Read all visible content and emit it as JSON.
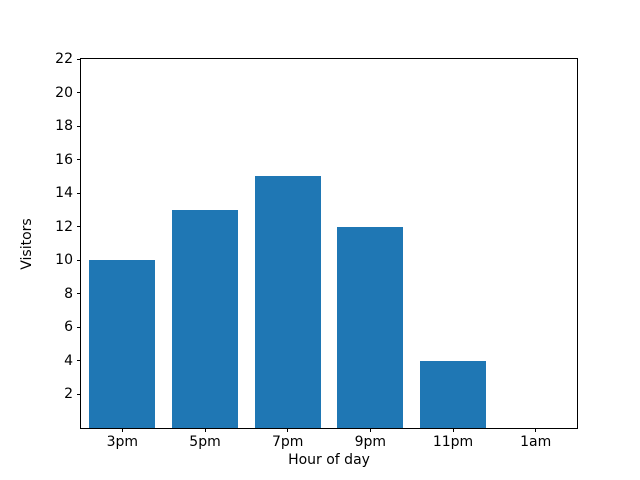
{
  "chart_data": {
    "type": "bar",
    "title": "",
    "xlabel": "Hour of day",
    "ylabel": "Visitors",
    "categories": [
      "3pm",
      "5pm",
      "7pm",
      "9pm",
      "11pm",
      "1am"
    ],
    "values": [
      10,
      13,
      15,
      12,
      4,
      0
    ],
    "yticks": [
      2,
      4,
      6,
      8,
      10,
      12,
      14,
      16,
      18,
      20,
      22
    ],
    "ylim": [
      0,
      22
    ],
    "bar_color": "#1f77b4",
    "bar_width_fraction": 0.8,
    "grid": false,
    "legend": null,
    "background_color": "#ffffff",
    "spine_color": "#000000"
  }
}
